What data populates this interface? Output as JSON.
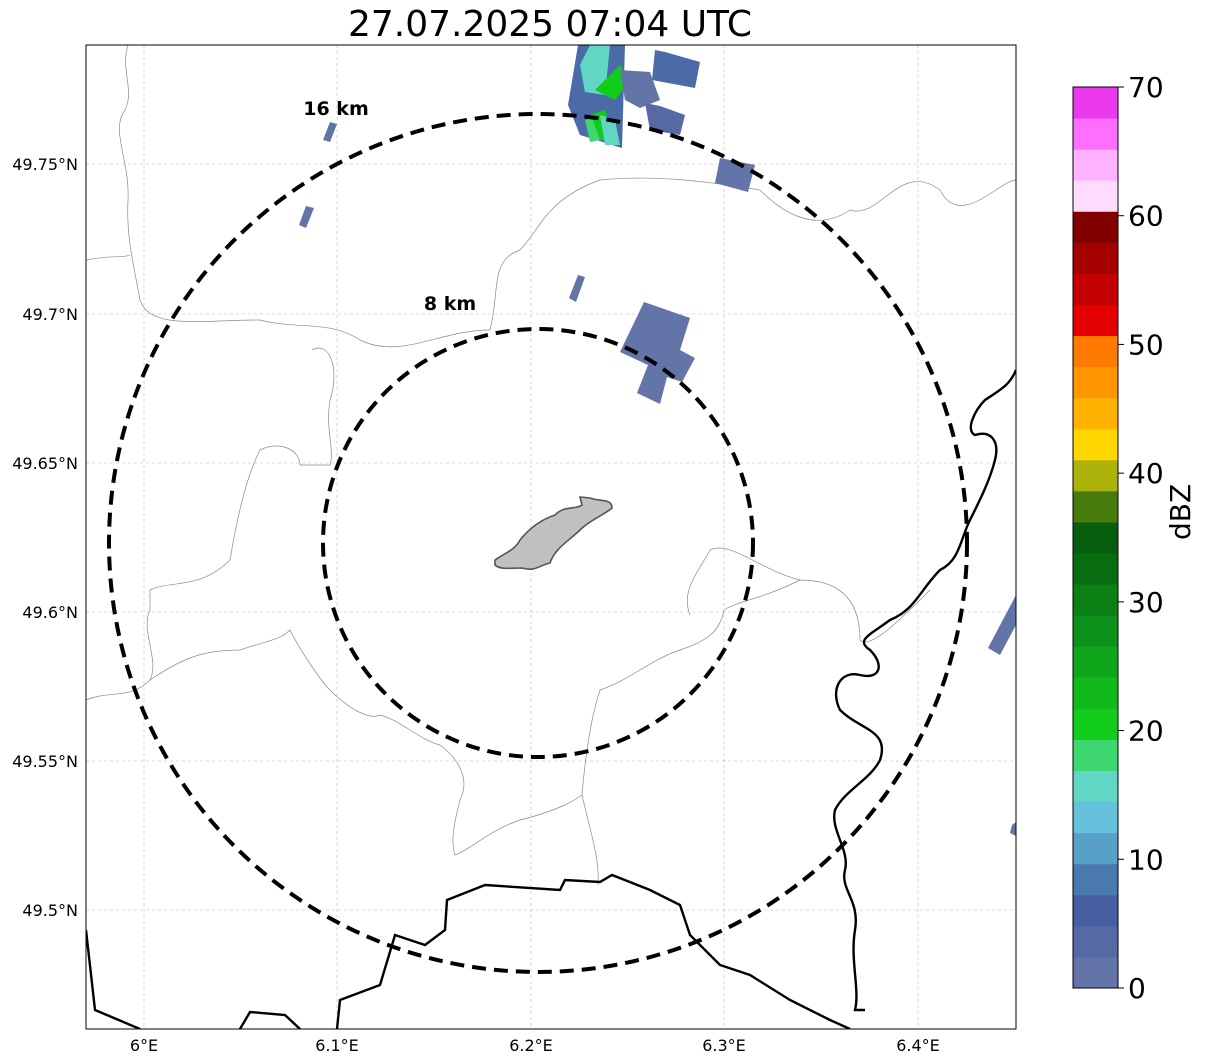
{
  "title": "27.07.2025 07:04 UTC",
  "rings": [
    {
      "label": "8 km",
      "radius_km": 8
    },
    {
      "label": "16 km",
      "radius_km": 16
    }
  ],
  "axes": {
    "lon_ticks": [
      "6°E",
      "6.1°E",
      "6.2°E",
      "6.3°E",
      "6.4°E"
    ],
    "lat_ticks": [
      "49.75°N",
      "49.7°N",
      "49.65°N",
      "49.6°N",
      "49.55°N",
      "49.5°N"
    ],
    "grid": true
  },
  "colorbar": {
    "label": "dBZ",
    "tick_labels": [
      "0",
      "10",
      "20",
      "30",
      "40",
      "50",
      "60",
      "70"
    ],
    "colors": [
      "#6374a8",
      "#5669a4",
      "#475fa2",
      "#4a79b0",
      "#57a0c8",
      "#66c1dc",
      "#62d6c4",
      "#3ed66e",
      "#12cc1b",
      "#12b91b",
      "#10a61b",
      "#0c921a",
      "#0b8015",
      "#086c10",
      "#075e0e",
      "#477b0b",
      "#adb20a",
      "#ffd600",
      "#ffb200",
      "#ff9600",
      "#ff7a00",
      "#e50000",
      "#c40000",
      "#a40000",
      "#820000",
      "#ffdcff",
      "#ffb2ff",
      "#ff6eff",
      "#ec38ee"
    ]
  },
  "map_colors": {
    "border": "#000000",
    "admin": "#888888",
    "city": "#c0c0c0",
    "rings": "#000000"
  }
}
